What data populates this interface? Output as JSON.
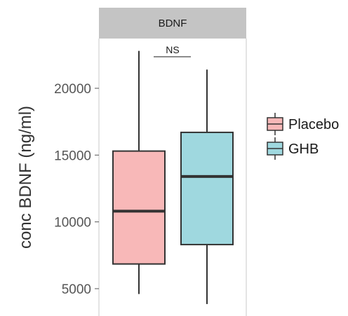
{
  "chart_data": {
    "type": "box",
    "title": "",
    "facet_label": "BDNF",
    "ylabel": "conc BDNF (ng/ml)",
    "xlabel": "",
    "ylim": [
      3800,
      23600
    ],
    "y_ticks": [
      {
        "value": 5000,
        "label": "5000"
      },
      {
        "value": 10000,
        "label": "10000"
      },
      {
        "value": 15000,
        "label": "15000"
      },
      {
        "value": 20000,
        "label": "20000"
      }
    ],
    "grid": false,
    "legend_position": "right",
    "significance": {
      "label": "NS",
      "between": [
        "Placebo",
        "GHB"
      ]
    },
    "series": [
      {
        "name": "Placebo",
        "color": "#F8B8B8",
        "whisker_low": 4600,
        "q1": 6850,
        "median": 10800,
        "q3": 15300,
        "whisker_high": 22800
      },
      {
        "name": "GHB",
        "color": "#9FD8DF",
        "whisker_low": 3850,
        "q1": 8300,
        "median": 13400,
        "q3": 16700,
        "whisker_high": 21400
      }
    ]
  }
}
